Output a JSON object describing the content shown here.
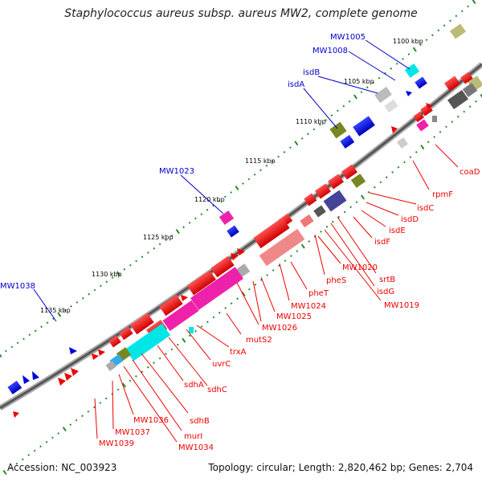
{
  "title": "Staphylococcus aureus subsp. aureus MW2, complete genome",
  "footer": {
    "accession": "Accession: NC_003923",
    "summary": "Topology: circular; Length: 2,820,462 bp; Genes: 2,704"
  },
  "scale_labels": [
    "1100 kbp",
    "1105 kbp",
    "1110 kbp",
    "1115 kbp",
    "1120 kbp",
    "1125 kbp",
    "1130 kbp",
    "1135 kbp"
  ],
  "outer_labels": [
    "MW1005",
    "MW1008",
    "isdB",
    "isdA",
    "MW1023",
    "MW1038"
  ],
  "inner_labels": [
    "coaD",
    "rpmF",
    "isdC",
    "isdD",
    "isdE",
    "isdF",
    "srtB",
    "isdG",
    "MW1019",
    "MW1020",
    "pheS",
    "pheT",
    "MW1024",
    "MW1025",
    "MW1026",
    "mutS2",
    "trxA",
    "uvrC",
    "sdhC",
    "sdhA",
    "sdhB",
    "murI",
    "MW1034",
    "MW1036",
    "MW1037",
    "MW1039"
  ],
  "colors": {
    "backbone": "#666666",
    "tick": "#2a8a2a",
    "label_red": "#ee0000",
    "label_blue": "#0000cc"
  }
}
